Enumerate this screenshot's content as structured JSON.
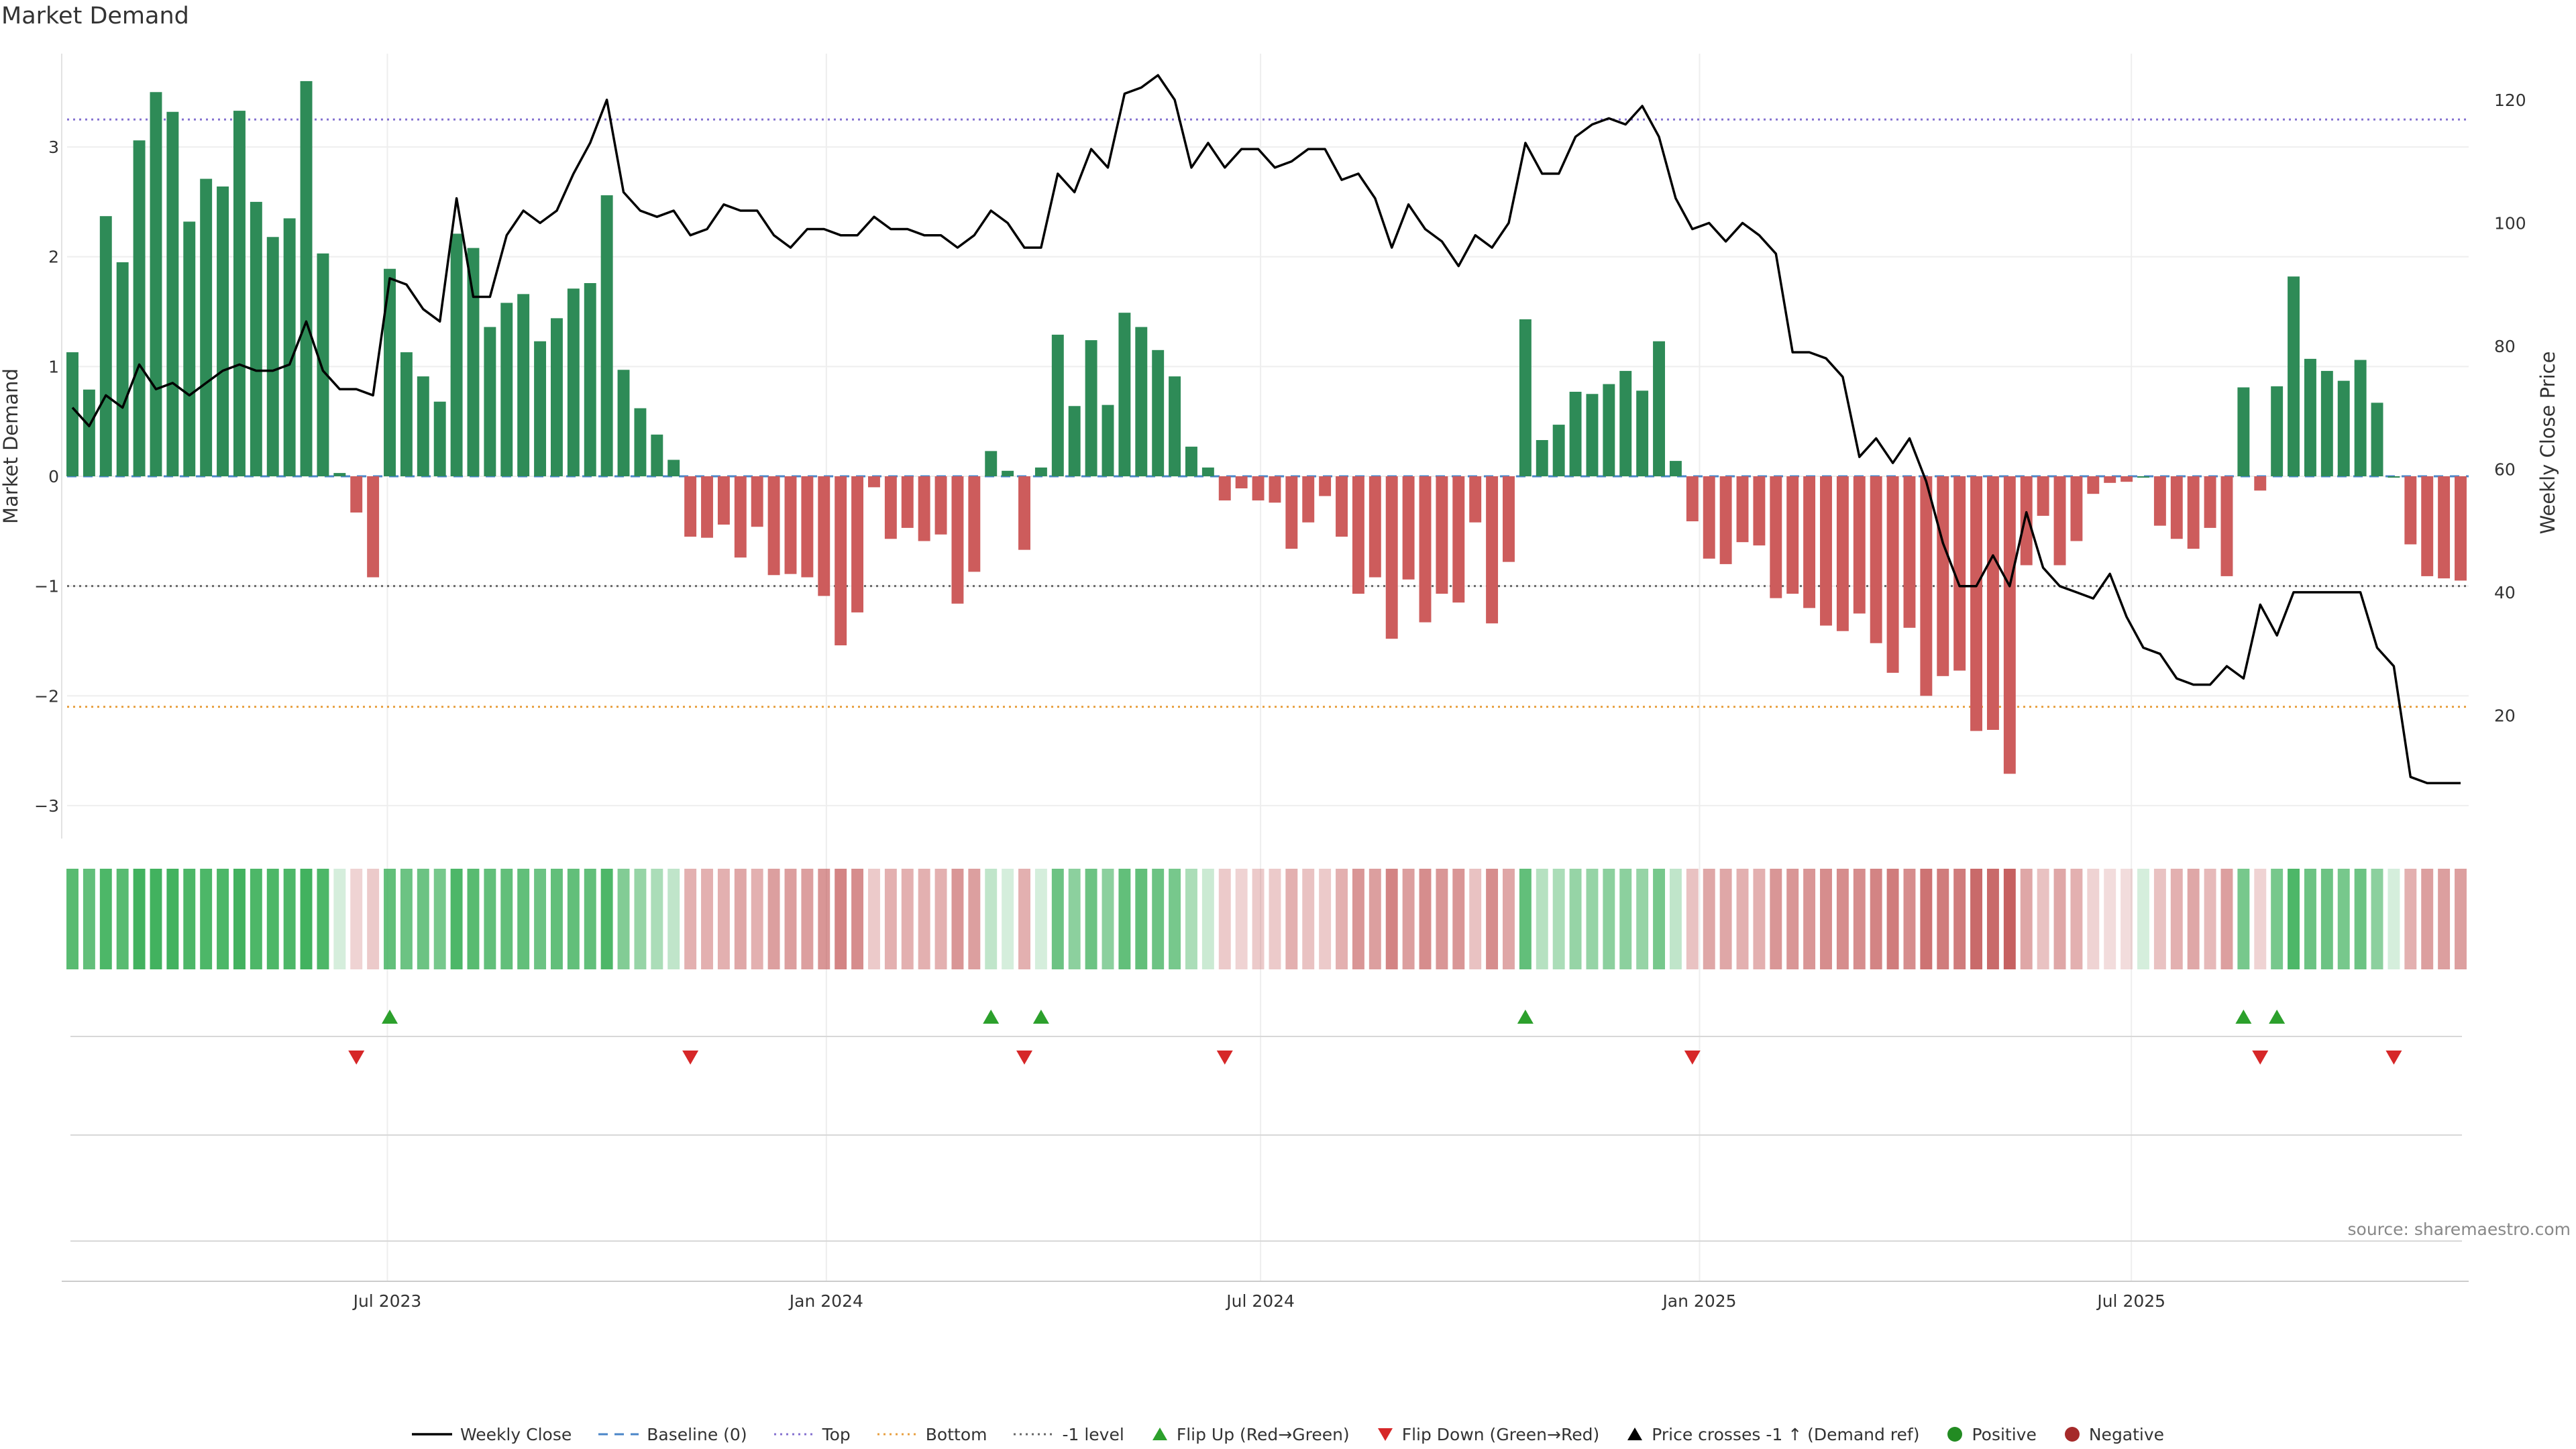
{
  "chart_data": {
    "type": "bar",
    "title": "Market Demand",
    "source": "source: sharemaestro.com",
    "ylabel_left": "Market Demand",
    "ylabel_right": "Weekly Close Price",
    "ylim_left": [
      -3.3,
      3.85
    ],
    "ylim_right": [
      0,
      127.5
    ],
    "y_ticks_left": [
      "−3",
      "−2",
      "−1",
      "0",
      "1",
      "2",
      "3"
    ],
    "y_ticks_right": [
      "20",
      "40",
      "60",
      "80",
      "100",
      "120"
    ],
    "x_ticks": [
      {
        "date": "2023-07-01",
        "label": "Jul 2023"
      },
      {
        "date": "2024-01-01",
        "label": "Jan 2024"
      },
      {
        "date": "2024-07-01",
        "label": "Jul 2024"
      },
      {
        "date": "2025-01-01",
        "label": "Jan 2025"
      },
      {
        "date": "2025-07-01",
        "label": "Jul 2025"
      }
    ],
    "start_date": "2023-02-19",
    "frequency": "weekly",
    "levels": {
      "top": 3.25,
      "bottom": -2.1,
      "minus_one": -1.0,
      "baseline": 0
    },
    "colors": {
      "positive": "#2e8b57",
      "negative": "#cd5c5c",
      "close": "#000000",
      "top": "#8470d0",
      "bottom": "#e8a040",
      "minus_one": "#666666",
      "baseline": "#4a86c8",
      "flip_up": "#2ca02c",
      "flip_down": "#d62728"
    },
    "demand": [
      1.13,
      0.79,
      2.37,
      1.95,
      3.06,
      3.5,
      3.32,
      2.32,
      2.71,
      2.64,
      3.33,
      2.5,
      2.18,
      2.35,
      3.6,
      2.03,
      0.03,
      -0.33,
      -0.92,
      1.89,
      1.13,
      0.91,
      0.68,
      2.21,
      2.08,
      1.36,
      1.58,
      1.66,
      1.23,
      1.44,
      1.71,
      1.76,
      2.56,
      0.97,
      0.62,
      0.38,
      0.15,
      -0.55,
      -0.56,
      -0.44,
      -0.74,
      -0.46,
      -0.9,
      -0.89,
      -0.92,
      -1.09,
      -1.54,
      -1.24,
      -0.1,
      -0.57,
      -0.47,
      -0.59,
      -0.53,
      -1.16,
      -0.87,
      0.23,
      0.05,
      -0.67,
      0.08,
      1.29,
      0.64,
      1.24,
      0.65,
      1.49,
      1.36,
      1.15,
      0.91,
      0.27,
      0.08,
      -0.22,
      -0.11,
      -0.22,
      -0.24,
      -0.66,
      -0.42,
      -0.18,
      -0.55,
      -1.07,
      -0.92,
      -1.48,
      -0.94,
      -1.33,
      -1.07,
      -1.15,
      -0.42,
      -1.34,
      -0.78,
      1.43,
      0.33,
      0.47,
      0.77,
      0.75,
      0.84,
      0.96,
      0.78,
      1.23,
      0.14,
      -0.41,
      -0.75,
      -0.8,
      -0.6,
      -0.63,
      -1.11,
      -1.07,
      -1.2,
      -1.36,
      -1.41,
      -1.25,
      -1.52,
      -1.79,
      -1.38,
      -2.0,
      -1.82,
      -1.77,
      -2.32,
      -2.31,
      -2.71,
      -0.81,
      -0.36,
      -0.81,
      -0.59,
      -0.16,
      -0.06,
      -0.05,
      0.0,
      -0.45,
      -0.57,
      -0.66,
      -0.47,
      -0.91,
      0.81,
      -0.13,
      0.82,
      1.82,
      1.07,
      0.96,
      0.87,
      1.06,
      0.67,
      0.0,
      -0.62,
      -0.91,
      -0.93,
      -0.95
    ],
    "close": [
      70,
      67,
      72,
      70,
      77,
      73,
      74,
      72,
      74,
      76,
      77,
      76,
      76,
      77,
      84,
      76,
      73,
      73,
      72,
      91,
      90,
      86,
      84,
      104,
      88,
      88,
      98,
      102,
      100,
      102,
      108,
      113,
      120,
      105,
      102,
      101,
      102,
      98,
      99,
      103,
      102,
      102,
      98,
      96,
      99,
      99,
      98,
      98,
      101,
      99,
      99,
      98,
      98,
      96,
      98,
      102,
      100,
      96,
      96,
      108,
      105,
      112,
      109,
      121,
      122,
      124,
      120,
      109,
      113,
      109,
      112,
      112,
      109,
      110,
      112,
      112,
      107,
      108,
      104,
      96,
      103,
      99,
      97,
      93,
      98,
      96,
      100,
      113,
      108,
      108,
      114,
      116,
      117,
      116,
      119,
      114,
      104,
      99,
      100,
      97,
      100,
      98,
      95,
      79,
      79,
      78,
      75,
      62,
      65,
      61,
      65,
      58,
      48,
      41,
      41,
      46,
      41,
      53,
      44,
      41,
      40,
      39,
      43,
      36,
      31,
      30,
      26,
      25,
      25,
      28,
      26,
      38,
      33,
      40,
      40,
      40,
      40,
      40,
      31,
      28,
      10,
      9,
      9,
      9
    ],
    "flip_up_idx": [
      19,
      55,
      58,
      87,
      130,
      132
    ],
    "flip_down_idx": [
      17,
      37,
      57,
      69,
      97,
      131,
      139
    ],
    "tile_opacity": [
      0.8,
      0.75,
      0.85,
      0.8,
      0.9,
      0.9,
      0.9,
      0.85,
      0.85,
      0.85,
      0.9,
      0.85,
      0.85,
      0.85,
      0.9,
      0.85,
      0.2,
      0.25,
      0.3,
      0.75,
      0.7,
      0.7,
      0.65,
      0.85,
      0.8,
      0.75,
      0.75,
      0.75,
      0.7,
      0.75,
      0.75,
      0.75,
      0.85,
      0.6,
      0.5,
      0.4,
      0.3,
      0.45,
      0.45,
      0.45,
      0.5,
      0.45,
      0.55,
      0.55,
      0.55,
      0.6,
      0.7,
      0.65,
      0.3,
      0.45,
      0.45,
      0.45,
      0.45,
      0.6,
      0.55,
      0.3,
      0.2,
      0.45,
      0.2,
      0.7,
      0.55,
      0.7,
      0.55,
      0.75,
      0.75,
      0.7,
      0.65,
      0.4,
      0.25,
      0.3,
      0.25,
      0.3,
      0.3,
      0.45,
      0.35,
      0.3,
      0.45,
      0.6,
      0.55,
      0.7,
      0.55,
      0.65,
      0.6,
      0.6,
      0.35,
      0.65,
      0.5,
      0.75,
      0.35,
      0.4,
      0.5,
      0.5,
      0.55,
      0.55,
      0.5,
      0.65,
      0.3,
      0.35,
      0.5,
      0.5,
      0.45,
      0.45,
      0.6,
      0.6,
      0.6,
      0.65,
      0.65,
      0.65,
      0.7,
      0.75,
      0.65,
      0.8,
      0.75,
      0.75,
      0.85,
      0.85,
      0.9,
      0.5,
      0.35,
      0.5,
      0.45,
      0.25,
      0.2,
      0.2,
      0.2,
      0.35,
      0.45,
      0.5,
      0.4,
      0.55,
      0.65,
      0.25,
      0.65,
      0.85,
      0.7,
      0.7,
      0.65,
      0.7,
      0.55,
      0.2,
      0.45,
      0.55,
      0.55,
      0.55
    ]
  },
  "legend": [
    {
      "key": "close",
      "label": "Weekly Close",
      "symbol": "solid"
    },
    {
      "key": "baseline",
      "label": "Baseline (0)",
      "symbol": "dash"
    },
    {
      "key": "top",
      "label": "Top",
      "symbol": "dot"
    },
    {
      "key": "bottom",
      "label": "Bottom",
      "symbol": "dot"
    },
    {
      "key": "minus_one",
      "label": "-1 level",
      "symbol": "dot"
    },
    {
      "key": "flip_up",
      "label": "Flip Up (Red→Green)",
      "symbol": "tri-up"
    },
    {
      "key": "flip_down",
      "label": "Flip Down (Green→Red)",
      "symbol": "tri-down"
    },
    {
      "key": "close",
      "label": "Price crosses -1 ↑ (Demand ref)",
      "symbol": "tri-up"
    },
    {
      "key": "positive",
      "label": "Positive",
      "symbol": "circle"
    },
    {
      "key": "negative",
      "label": "Negative",
      "symbol": "circle"
    }
  ]
}
